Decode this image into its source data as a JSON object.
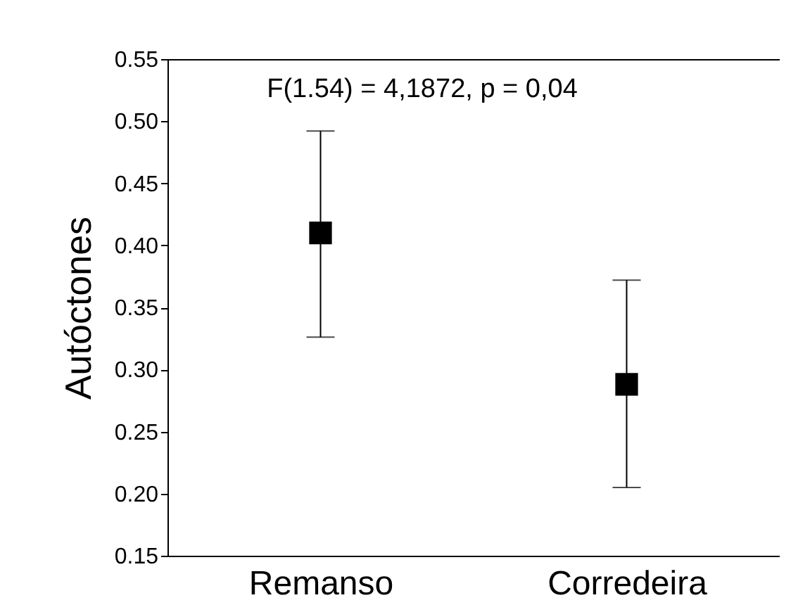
{
  "chart_data": {
    "type": "scatter",
    "ylabel": "Autóctones",
    "categories": [
      "Remanso",
      "Corredeira"
    ],
    "values": [
      0.41,
      0.288
    ],
    "color": "#000000",
    "errors": [
      [
        0.326,
        0.492
      ],
      [
        0.205,
        0.372
      ]
    ],
    "marker": "square",
    "ylim": [
      0.15,
      0.55
    ],
    "yticks": [
      {
        "value": 0.15,
        "label": "0.15"
      },
      {
        "value": 0.2,
        "label": "0.20"
      },
      {
        "value": 0.25,
        "label": "0.25"
      },
      {
        "value": 0.3,
        "label": "0.30"
      },
      {
        "value": 0.35,
        "label": "0.35"
      },
      {
        "value": 0.4,
        "label": "0.40"
      },
      {
        "value": 0.45,
        "label": "0.45"
      },
      {
        "value": 0.5,
        "label": "0.50"
      },
      {
        "value": 0.55,
        "label": "0.55"
      }
    ],
    "annotations": [
      "F(1.54) = 4,1872, p = 0,04"
    ],
    "grid": false
  }
}
